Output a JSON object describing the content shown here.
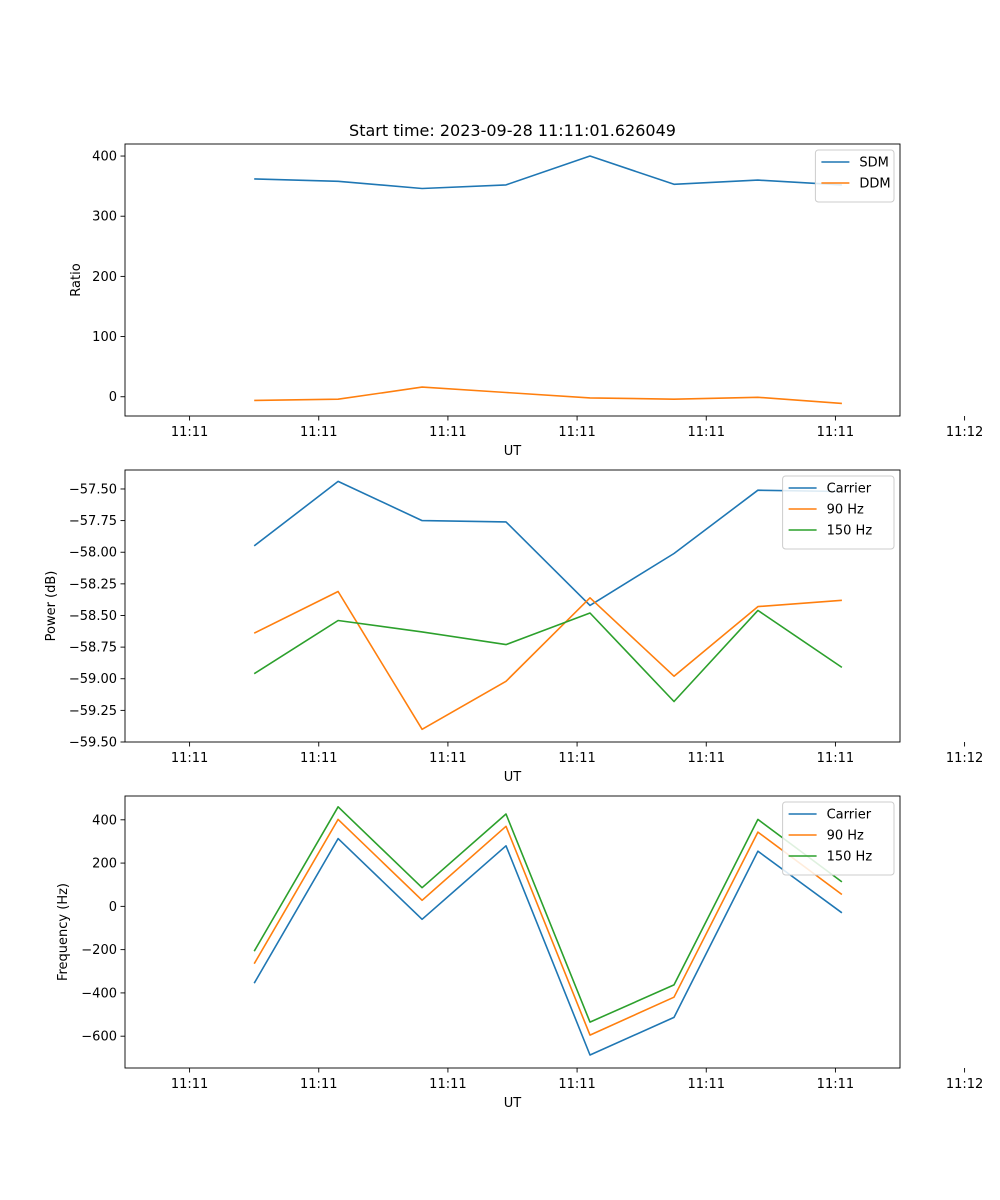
{
  "figure": {
    "title": "Start time: 2023-09-28 11:11:01.626049"
  },
  "colors": {
    "blue": "#1f77b4",
    "orange": "#ff7f0e",
    "green": "#2ca02c"
  },
  "chart_data": [
    {
      "type": "line",
      "title": "Start time: 2023-09-28 11:11:01.626049",
      "xlabel": "UT",
      "ylabel": "Ratio",
      "xlim": [
        -0.5,
        5.5
      ],
      "ylim": [
        -32,
        420
      ],
      "x": [
        0.5,
        1.15,
        1.8,
        2.45,
        3.1,
        3.75,
        4.4,
        5.05
      ],
      "x_ticks": [
        {
          "x": 0,
          "label": "11:11"
        },
        {
          "x": 1,
          "label": "11:11"
        },
        {
          "x": 2,
          "label": "11:11"
        },
        {
          "x": 3,
          "label": "11:11"
        },
        {
          "x": 4,
          "label": "11:11"
        },
        {
          "x": 5,
          "label": "11:11"
        },
        {
          "x": 6,
          "label": "11:12"
        }
      ],
      "y_ticks": [
        {
          "y": 0,
          "label": "0"
        },
        {
          "y": 100,
          "label": "100"
        },
        {
          "y": 200,
          "label": "200"
        },
        {
          "y": 300,
          "label": "300"
        },
        {
          "y": 400,
          "label": "400"
        }
      ],
      "legend_position": "top-right",
      "series": [
        {
          "name": "SDM",
          "color": "#1f77b4",
          "values": [
            362,
            358,
            346,
            352,
            400,
            353,
            360,
            352
          ]
        },
        {
          "name": "DDM",
          "color": "#ff7f0e",
          "values": [
            -6,
            -4,
            16,
            7,
            -2,
            -4,
            -1,
            -11
          ]
        }
      ]
    },
    {
      "type": "line",
      "title": "",
      "xlabel": "UT",
      "ylabel": "Power (dB)",
      "xlim": [
        -0.5,
        5.5
      ],
      "ylim": [
        -59.5,
        -57.35
      ],
      "x": [
        0.5,
        1.15,
        1.8,
        2.45,
        3.1,
        3.75,
        4.4,
        5.05
      ],
      "x_ticks": [
        {
          "x": 0,
          "label": "11:11"
        },
        {
          "x": 1,
          "label": "11:11"
        },
        {
          "x": 2,
          "label": "11:11"
        },
        {
          "x": 3,
          "label": "11:11"
        },
        {
          "x": 4,
          "label": "11:11"
        },
        {
          "x": 5,
          "label": "11:11"
        },
        {
          "x": 6,
          "label": "11:12"
        }
      ],
      "y_ticks": [
        {
          "y": -59.5,
          "label": "−59.50"
        },
        {
          "y": -59.25,
          "label": "−59.25"
        },
        {
          "y": -59.0,
          "label": "−59.00"
        },
        {
          "y": -58.75,
          "label": "−58.75"
        },
        {
          "y": -58.5,
          "label": "−58.50"
        },
        {
          "y": -58.25,
          "label": "−58.25"
        },
        {
          "y": -58.0,
          "label": "−58.00"
        },
        {
          "y": -57.75,
          "label": "−57.75"
        },
        {
          "y": -57.5,
          "label": "−57.50"
        }
      ],
      "legend_position": "top-right",
      "series": [
        {
          "name": "Carrier",
          "color": "#1f77b4",
          "values": [
            -57.95,
            -57.44,
            -57.75,
            -57.76,
            -58.42,
            -58.01,
            -57.51,
            -57.52
          ]
        },
        {
          "name": "90 Hz",
          "color": "#ff7f0e",
          "values": [
            -58.64,
            -58.31,
            -59.4,
            -59.02,
            -58.36,
            -58.98,
            -58.43,
            -58.38
          ]
        },
        {
          "name": "150 Hz",
          "color": "#2ca02c",
          "values": [
            -58.96,
            -58.54,
            -58.63,
            -58.73,
            -58.48,
            -59.18,
            -58.46,
            -58.91
          ]
        }
      ]
    },
    {
      "type": "line",
      "title": "",
      "xlabel": "UT",
      "ylabel": "Frequency (Hz)",
      "xlim": [
        -0.5,
        5.5
      ],
      "ylim": [
        -747,
        510
      ],
      "x": [
        0.5,
        1.15,
        1.8,
        2.45,
        3.1,
        3.75,
        4.4,
        5.05
      ],
      "x_ticks": [
        {
          "x": 0,
          "label": "11:11"
        },
        {
          "x": 1,
          "label": "11:11"
        },
        {
          "x": 2,
          "label": "11:11"
        },
        {
          "x": 3,
          "label": "11:11"
        },
        {
          "x": 4,
          "label": "11:11"
        },
        {
          "x": 5,
          "label": "11:11"
        },
        {
          "x": 6,
          "label": "11:12"
        }
      ],
      "y_ticks": [
        {
          "y": -600,
          "label": "−600"
        },
        {
          "y": -400,
          "label": "−400"
        },
        {
          "y": -200,
          "label": "−200"
        },
        {
          "y": 0,
          "label": "0"
        },
        {
          "y": 200,
          "label": "200"
        },
        {
          "y": 400,
          "label": "400"
        }
      ],
      "legend_position": "top-right",
      "series": [
        {
          "name": "Carrier",
          "color": "#1f77b4",
          "values": [
            -355,
            313,
            -60,
            280,
            -687,
            -513,
            255,
            -30
          ]
        },
        {
          "name": "90 Hz",
          "color": "#ff7f0e",
          "values": [
            -265,
            402,
            28,
            370,
            -595,
            -420,
            343,
            55
          ]
        },
        {
          "name": "150 Hz",
          "color": "#2ca02c",
          "values": [
            -207,
            460,
            86,
            427,
            -535,
            -363,
            402,
            113
          ]
        }
      ]
    }
  ]
}
